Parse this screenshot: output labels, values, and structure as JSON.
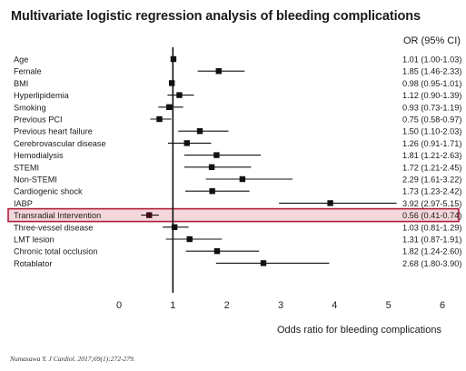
{
  "title": "Multivariate logistic regression analysis of bleeding complications",
  "or_header": "OR (95% CI)",
  "citation": "Numasawa Y. J Cardiol. 2017;69(1):272-279.",
  "highlight_color": "#b01e3a",
  "chart_data": {
    "type": "forest",
    "xlabel": "Odds ratio for bleeding complications",
    "xlim": [
      0,
      6
    ],
    "xticks": [
      0,
      1,
      2,
      3,
      4,
      5,
      6
    ],
    "reference_line": 1,
    "highlighted_row": "Transradial Intervention",
    "rows": [
      {
        "label": "Age",
        "or": 1.01,
        "lo": 1.0,
        "hi": 1.03,
        "text": "1.01 (1.00-1.03)"
      },
      {
        "label": "Female",
        "or": 1.85,
        "lo": 1.46,
        "hi": 2.33,
        "text": "1.85 (1.46-2.33)"
      },
      {
        "label": "BMI",
        "or": 0.98,
        "lo": 0.95,
        "hi": 1.01,
        "text": "0.98 (0.95-1.01)"
      },
      {
        "label": "Hyperlipidemia",
        "or": 1.12,
        "lo": 0.9,
        "hi": 1.39,
        "text": "1.12 (0.90-1.39)"
      },
      {
        "label": "Smoking",
        "or": 0.93,
        "lo": 0.73,
        "hi": 1.19,
        "text": "0.93 (0.73-1.19)"
      },
      {
        "label": "Previous PCI",
        "or": 0.75,
        "lo": 0.58,
        "hi": 0.97,
        "text": "0.75 (0.58-0.97)"
      },
      {
        "label": "Previous heart failure",
        "or": 1.5,
        "lo": 1.1,
        "hi": 2.03,
        "text": "1.50 (1.10-2.03)"
      },
      {
        "label": "Cerebrovascular disease",
        "or": 1.26,
        "lo": 0.91,
        "hi": 1.71,
        "text": "1.26 (0.91-1.71)"
      },
      {
        "label": "Hemodialysis",
        "or": 1.81,
        "lo": 1.21,
        "hi": 2.63,
        "text": "1.81 (1.21-2.63)"
      },
      {
        "label": "STEMI",
        "or": 1.72,
        "lo": 1.21,
        "hi": 2.45,
        "text": "1.72 (1.21-2.45)"
      },
      {
        "label": "Non-STEMI",
        "or": 2.29,
        "lo": 1.61,
        "hi": 3.22,
        "text": "2.29 (1.61-3.22)"
      },
      {
        "label": "Cardiogenic shock",
        "or": 1.73,
        "lo": 1.23,
        "hi": 2.42,
        "text": "1.73 (1.23-2.42)"
      },
      {
        "label": "IABP",
        "or": 3.92,
        "lo": 2.97,
        "hi": 5.15,
        "text": "3.92 (2.97-5.15)"
      },
      {
        "label": "Transradial Intervention",
        "or": 0.56,
        "lo": 0.41,
        "hi": 0.74,
        "text": "0.56 (0.41-0.74)"
      },
      {
        "label": "Three-vessel disease",
        "or": 1.03,
        "lo": 0.81,
        "hi": 1.29,
        "text": "1.03 (0.81-1.29)"
      },
      {
        "label": "LMT lesion",
        "or": 1.31,
        "lo": 0.87,
        "hi": 1.91,
        "text": "1.31 (0.87-1.91)"
      },
      {
        "label": "Chronic total occlusion",
        "or": 1.82,
        "lo": 1.24,
        "hi": 2.6,
        "text": "1.82 (1.24-2.60)"
      },
      {
        "label": "Rotablator",
        "or": 2.68,
        "lo": 1.8,
        "hi": 3.9,
        "text": "2.68 (1.80-3.90)"
      }
    ]
  }
}
